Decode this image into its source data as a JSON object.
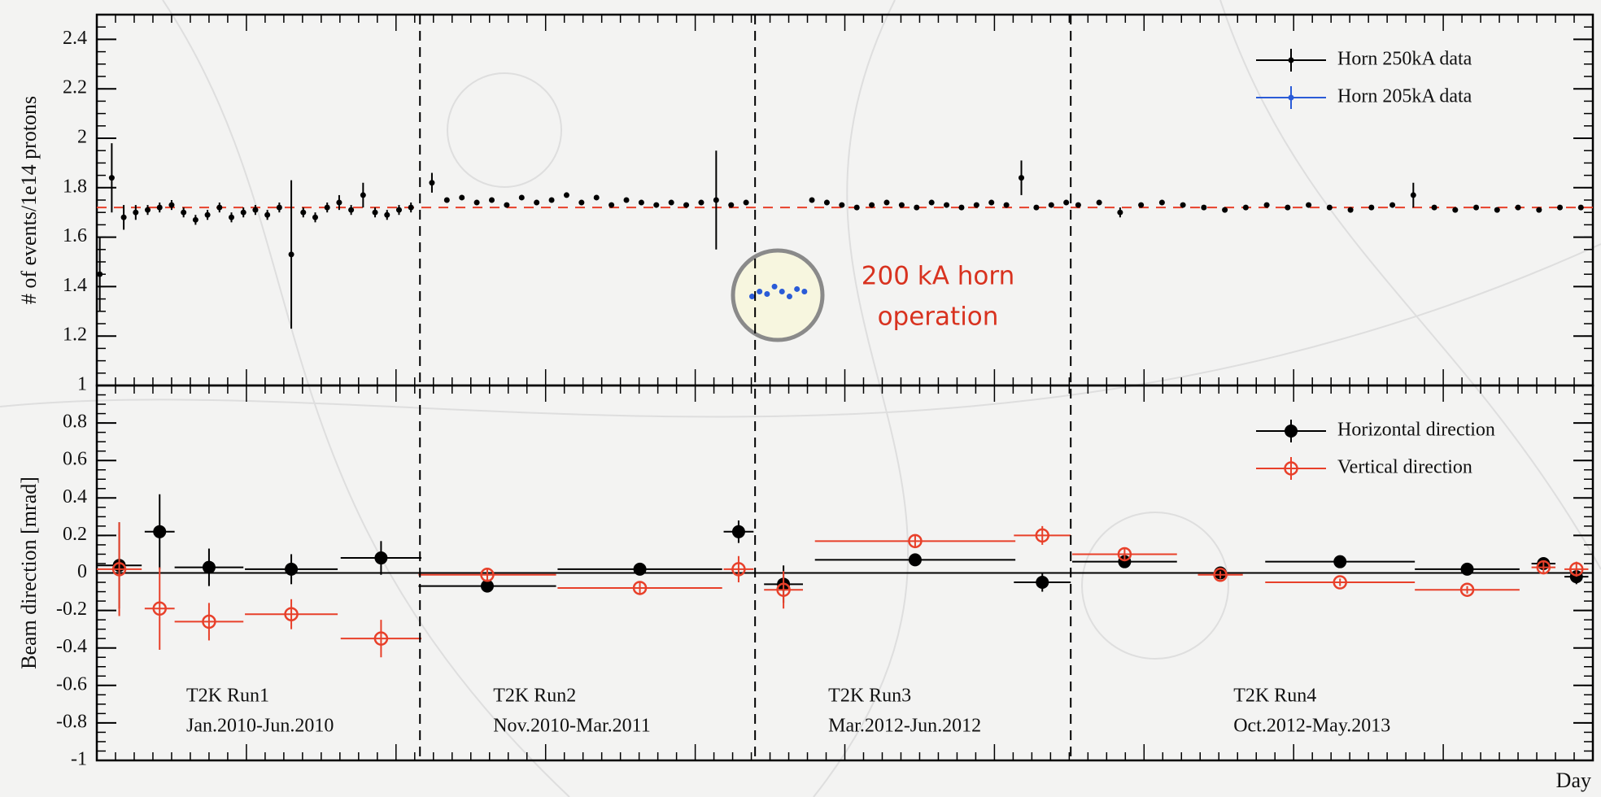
{
  "chart_data": [
    {
      "type": "scatter",
      "ylabel": "# of events/1e14 protons",
      "xlim": [
        0,
        100
      ],
      "ylim": [
        1,
        2.5
      ],
      "yticks": [
        1.2,
        1.4,
        1.6,
        1.8,
        2,
        2.2,
        2.4
      ],
      "reference_line": 1.72,
      "reference_color": "#e8402a",
      "legend": "upper right",
      "annotation": [
        "200 kA horn",
        "operation"
      ],
      "series": [
        {
          "name": "Horn 250kA data",
          "color": "#000000",
          "marker": "dot",
          "x": [
            0.2,
            1.0,
            1.8,
            2.6,
            3.4,
            4.2,
            5.0,
            5.8,
            6.6,
            7.4,
            8.2,
            9.0,
            9.8,
            10.6,
            11.4,
            12.2,
            13.0,
            13.8,
            14.6,
            15.4,
            16.2,
            17.0,
            17.8,
            18.6,
            19.4,
            20.2,
            21.0,
            22.4,
            23.4,
            24.4,
            25.4,
            26.4,
            27.4,
            28.4,
            29.4,
            30.4,
            31.4,
            32.4,
            33.4,
            34.4,
            35.4,
            36.4,
            37.4,
            38.4,
            39.4,
            40.4,
            41.4,
            42.4,
            43.4,
            47.8,
            48.8,
            49.8,
            50.8,
            51.8,
            52.8,
            53.8,
            54.8,
            55.8,
            56.8,
            57.8,
            58.8,
            59.8,
            60.8,
            61.8,
            62.8,
            63.8,
            64.8,
            65.6,
            67.0,
            68.4,
            69.8,
            71.2,
            72.6,
            74.0,
            75.4,
            76.8,
            78.2,
            79.6,
            81.0,
            82.4,
            83.8,
            85.2,
            86.6,
            88.0,
            89.4,
            90.8,
            92.2,
            93.6,
            95.0,
            96.4,
            97.8,
            99.2
          ],
          "values": [
            1.45,
            1.84,
            1.68,
            1.7,
            1.71,
            1.72,
            1.73,
            1.7,
            1.67,
            1.69,
            1.72,
            1.68,
            1.7,
            1.71,
            1.69,
            1.72,
            1.53,
            1.7,
            1.68,
            1.72,
            1.74,
            1.71,
            1.77,
            1.7,
            1.69,
            1.71,
            1.72,
            1.82,
            1.75,
            1.76,
            1.74,
            1.75,
            1.73,
            1.76,
            1.74,
            1.75,
            1.77,
            1.74,
            1.76,
            1.73,
            1.75,
            1.74,
            1.73,
            1.74,
            1.73,
            1.74,
            1.75,
            1.73,
            1.74,
            1.75,
            1.74,
            1.73,
            1.72,
            1.73,
            1.74,
            1.73,
            1.72,
            1.74,
            1.73,
            1.72,
            1.73,
            1.74,
            1.73,
            1.84,
            1.72,
            1.73,
            1.74,
            1.73,
            1.74,
            1.7,
            1.73,
            1.74,
            1.73,
            1.72,
            1.71,
            1.72,
            1.73,
            1.72,
            1.73,
            1.72,
            1.71,
            1.72,
            1.73,
            1.77,
            1.72,
            1.71,
            1.72,
            1.71,
            1.72,
            1.71,
            1.72,
            1.72
          ],
          "errors": [
            0.15,
            0.14,
            0.05,
            0.03,
            0.02,
            0.02,
            0.02,
            0.02,
            0.02,
            0.02,
            0.02,
            0.02,
            0.02,
            0.02,
            0.02,
            0.02,
            0.3,
            0.02,
            0.02,
            0.02,
            0.03,
            0.02,
            0.05,
            0.02,
            0.02,
            0.02,
            0.02,
            0.04,
            0.01,
            0.01,
            0.01,
            0.01,
            0.01,
            0.01,
            0.01,
            0.01,
            0.01,
            0.01,
            0.01,
            0.01,
            0.01,
            0.01,
            0.01,
            0.01,
            0.01,
            0.01,
            0.2,
            0.01,
            0.01,
            0.01,
            0.01,
            0.01,
            0.01,
            0.01,
            0.01,
            0.01,
            0.01,
            0.01,
            0.01,
            0.01,
            0.01,
            0.01,
            0.01,
            0.07,
            0.01,
            0.01,
            0.01,
            0.01,
            0.01,
            0.02,
            0.01,
            0.01,
            0.01,
            0.01,
            0.01,
            0.01,
            0.01,
            0.01,
            0.01,
            0.01,
            0.01,
            0.01,
            0.01,
            0.05,
            0.01,
            0.01,
            0.01,
            0.01,
            0.01,
            0.01,
            0.01,
            0.01
          ]
        },
        {
          "name": "Horn 205kA data",
          "color": "#2a5bd7",
          "marker": "dot",
          "x": [
            43.8,
            44.3,
            44.8,
            45.3,
            45.8,
            46.3,
            46.8,
            47.3
          ],
          "values": [
            1.36,
            1.38,
            1.37,
            1.4,
            1.38,
            1.36,
            1.39,
            1.38
          ],
          "errors": [
            0.01,
            0.01,
            0.01,
            0.01,
            0.01,
            0.01,
            0.01,
            0.01
          ]
        }
      ]
    },
    {
      "type": "scatter",
      "ylabel": "Beam direction [mrad]",
      "xlabel": "Day",
      "xlim": [
        0,
        100
      ],
      "ylim": [
        -1,
        1
      ],
      "yticks": [
        -1,
        -0.8,
        -0.6,
        -0.4,
        -0.2,
        0,
        0.2,
        0.4,
        0.6,
        0.8,
        1
      ],
      "reference_line": 0,
      "reference_color": "#000000",
      "legend": "upper right",
      "run_boundaries": [
        21.6,
        44.0,
        65.1
      ],
      "runs": [
        {
          "name": "T2K Run1",
          "period": "Jan.2010-Jun.2010"
        },
        {
          "name": "T2K Run2",
          "period": "Nov.2010-Mar.2011"
        },
        {
          "name": "T2K Run3",
          "period": "Mar.2012-Jun.2012"
        },
        {
          "name": "T2K Run4",
          "period": "Oct.2012-May.2013"
        }
      ],
      "series": [
        {
          "name": "Horizontal direction",
          "color": "#000000",
          "marker": "filled-circle",
          "x": [
            1.5,
            4.2,
            7.5,
            13.0,
            19.0,
            26.1,
            36.3,
            42.9,
            45.9,
            54.7,
            63.2,
            68.7,
            75.1,
            83.1,
            91.6,
            96.7,
            98.9
          ],
          "xerr": [
            1.5,
            1.0,
            2.3,
            3.1,
            2.7,
            4.6,
            5.5,
            1.0,
            1.3,
            6.7,
            1.9,
            3.5,
            1.5,
            5.0,
            3.5,
            0.8,
            0.8
          ],
          "values": [
            0.04,
            0.22,
            0.03,
            0.02,
            0.08,
            -0.07,
            0.02,
            0.22,
            -0.06,
            0.07,
            -0.05,
            0.06,
            0.0,
            0.06,
            0.02,
            0.05,
            -0.02
          ],
          "yerr": [
            0.23,
            0.2,
            0.1,
            0.08,
            0.09,
            0.02,
            0.02,
            0.06,
            0.1,
            0.02,
            0.05,
            0.02,
            0.02,
            0.01,
            0.01,
            0.03,
            0.04
          ]
        },
        {
          "name": "Vertical direction",
          "color": "#e8402a",
          "marker": "open-circle",
          "x": [
            1.5,
            4.2,
            7.5,
            13.0,
            19.0,
            26.1,
            36.3,
            42.9,
            45.9,
            54.7,
            63.2,
            68.7,
            75.1,
            83.1,
            91.6,
            96.7,
            98.9
          ],
          "xerr": [
            1.5,
            1.0,
            2.3,
            3.1,
            2.7,
            4.6,
            5.5,
            1.0,
            1.3,
            6.7,
            1.9,
            3.5,
            1.5,
            5.0,
            3.5,
            0.8,
            0.8
          ],
          "values": [
            0.02,
            -0.19,
            -0.26,
            -0.22,
            -0.35,
            -0.01,
            -0.08,
            0.02,
            -0.09,
            0.17,
            0.2,
            0.1,
            -0.01,
            -0.05,
            -0.09,
            0.03,
            0.02
          ],
          "yerr": [
            0.25,
            0.22,
            0.1,
            0.08,
            0.1,
            0.03,
            0.03,
            0.07,
            0.1,
            0.03,
            0.05,
            0.03,
            0.02,
            0.02,
            0.02,
            0.03,
            0.04
          ]
        }
      ]
    }
  ]
}
